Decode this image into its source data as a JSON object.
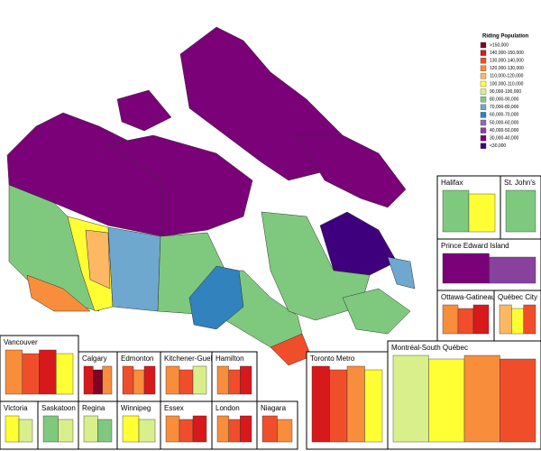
{
  "legend": {
    "title": "Riding Population",
    "items": [
      {
        "label": ">150,000",
        "color": "#800026"
      },
      {
        "label": "140,000-150,000",
        "color": "#d7191c"
      },
      {
        "label": "130,000-140,000",
        "color": "#f04e2a"
      },
      {
        "label": "120,000-130,000",
        "color": "#f88d3c"
      },
      {
        "label": "110,000-120,000",
        "color": "#fdb863"
      },
      {
        "label": "100,000-110,000",
        "color": "#ffff33"
      },
      {
        "label": "90,000-100,000",
        "color": "#d9ef8b"
      },
      {
        "label": "80,000-90,000",
        "color": "#7fc97f"
      },
      {
        "label": "70,000-80,000",
        "color": "#6fa8cf"
      },
      {
        "label": "60,000-70,000",
        "color": "#3182bd"
      },
      {
        "label": "50,000-60,000",
        "color": "#8c6bb1"
      },
      {
        "label": "40,000-50,000",
        "color": "#88419d"
      },
      {
        "label": "30,000-40,000",
        "color": "#7a0177"
      },
      {
        "label": "<30,000",
        "color": "#3f007d"
      }
    ]
  },
  "insets": [
    {
      "label": "Halifax"
    },
    {
      "label": "St. John's"
    },
    {
      "label": "Prince Edward Island"
    },
    {
      "label": "Ottawa-Gatineau"
    },
    {
      "label": "Québec City"
    },
    {
      "label": "Montréal-South Québec"
    },
    {
      "label": "Vancouver"
    },
    {
      "label": "Calgary"
    },
    {
      "label": "Edmonton"
    },
    {
      "label": "Kitchener-Guelph"
    },
    {
      "label": "Hamilton"
    },
    {
      "label": "Toronto Metro"
    },
    {
      "label": "Victoria"
    },
    {
      "label": "Saskatoon"
    },
    {
      "label": "Regina"
    },
    {
      "label": "Winnipeg"
    },
    {
      "label": "Essex"
    },
    {
      "label": "London"
    },
    {
      "label": "Niagara"
    }
  ]
}
